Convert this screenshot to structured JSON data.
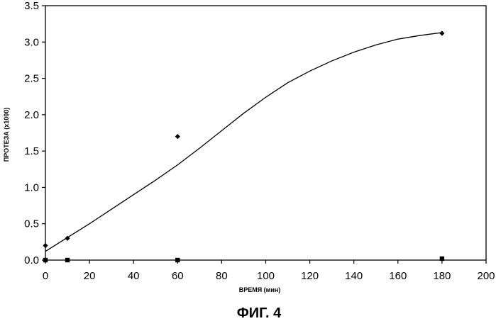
{
  "chart_data": {
    "type": "scatter",
    "title": "",
    "caption": "ФИГ. 4",
    "xlabel": "ВРЕМЯ (мин)",
    "ylabel": "ПРОТЕЗА (x1000)",
    "xlim": [
      0,
      200
    ],
    "ylim": [
      0,
      3.5
    ],
    "x_ticks": [
      0,
      20,
      40,
      60,
      80,
      100,
      120,
      140,
      160,
      180,
      200
    ],
    "y_ticks": [
      "0.0",
      "0.5",
      "1.0",
      "1.5",
      "2.0",
      "2.5",
      "3.0",
      "3.5"
    ],
    "grid": false,
    "legend": "none",
    "series": [
      {
        "marker": "diamond",
        "color": "#000000",
        "x": [
          0,
          10,
          60,
          180
        ],
        "y": [
          0.2,
          0.3,
          1.7,
          3.12
        ],
        "trendline": {
          "type": "polynomial",
          "x": [
            0,
            10,
            20,
            30,
            40,
            50,
            60,
            70,
            80,
            90,
            100,
            110,
            120,
            130,
            140,
            150,
            160,
            170,
            180
          ],
          "y": [
            0.12,
            0.31,
            0.5,
            0.7,
            0.9,
            1.1,
            1.31,
            1.54,
            1.78,
            2.02,
            2.24,
            2.44,
            2.6,
            2.74,
            2.86,
            2.96,
            3.04,
            3.09,
            3.13
          ]
        }
      },
      {
        "marker": "square",
        "color": "#000000",
        "x": [
          0,
          10,
          60,
          180
        ],
        "y": [
          0.0,
          0.0,
          0.0,
          0.02
        ]
      }
    ]
  }
}
